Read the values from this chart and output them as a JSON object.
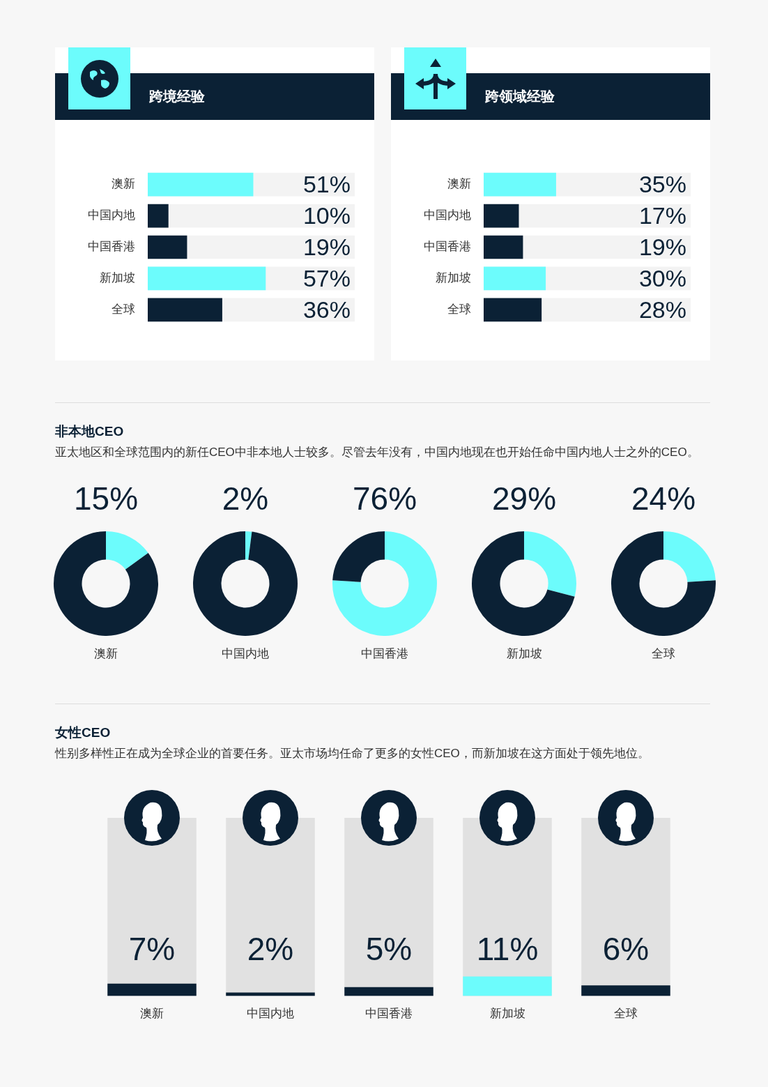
{
  "chart_data": [
    {
      "type": "bar",
      "orientation": "horizontal",
      "title": "跨境经验",
      "categories": [
        "澳新",
        "中国内地",
        "中国香港",
        "新加坡",
        "全球"
      ],
      "values": [
        51,
        10,
        19,
        57,
        36
      ],
      "colors": [
        "#6cfcfc",
        "#0b2135",
        "#0b2135",
        "#6cfcfc",
        "#0b2135"
      ],
      "value_labels": [
        "51%",
        "10%",
        "19%",
        "57%",
        "36%"
      ],
      "xlim": [
        0,
        100
      ],
      "tick_labels": "y"
    },
    {
      "type": "bar",
      "orientation": "horizontal",
      "title": "跨领域经验",
      "categories": [
        "澳新",
        "中国内地",
        "中国香港",
        "新加坡",
        "全球"
      ],
      "values": [
        35,
        17,
        19,
        30,
        28
      ],
      "colors": [
        "#6cfcfc",
        "#0b2135",
        "#0b2135",
        "#6cfcfc",
        "#0b2135"
      ],
      "value_labels": [
        "35%",
        "17%",
        "19%",
        "30%",
        "28%"
      ],
      "xlim": [
        0,
        100
      ],
      "tick_labels": "y"
    },
    {
      "type": "other",
      "title": "非本地CEO",
      "subtitle": "亚太地区和全球范围内的新任CEO中非本地人士较多。尽管去年没有，中国内地现在也开始任命中国内地人士之外的CEO。"
    },
    {
      "type": "donut",
      "title": "澳新",
      "categories": [
        null,
        null
      ],
      "values": [
        15,
        85
      ],
      "colors": [
        "#6cfcfc",
        "#0b2135"
      ],
      "value_labels": [
        "15%",
        null
      ]
    },
    {
      "type": "donut",
      "title": "中国内地",
      "categories": [
        null,
        null
      ],
      "values": [
        2,
        98
      ],
      "colors": [
        "#6cfcfc",
        "#0b2135"
      ],
      "value_labels": [
        "2%",
        null
      ]
    },
    {
      "type": "donut",
      "title": "中国香港",
      "categories": [
        null,
        null
      ],
      "values": [
        76,
        24
      ],
      "colors": [
        "#6cfcfc",
        "#0b2135"
      ],
      "value_labels": [
        "76%",
        null
      ]
    },
    {
      "type": "donut",
      "title": "新加坡",
      "categories": [
        null,
        null
      ],
      "values": [
        29,
        71
      ],
      "colors": [
        "#6cfcfc",
        "#0b2135"
      ],
      "value_labels": [
        "29%",
        null
      ]
    },
    {
      "type": "donut",
      "title": "全球",
      "categories": [
        null,
        null
      ],
      "values": [
        24,
        76
      ],
      "colors": [
        "#6cfcfc",
        "#0b2135"
      ],
      "value_labels": [
        "24%",
        null
      ]
    },
    {
      "type": "other",
      "title": "女性CEO",
      "subtitle": "性别多样性正在成为全球企业的首要任务。亚太市场均任命了更多的女性CEO，而新加坡在这方面处于领先地位。"
    },
    {
      "type": "bar",
      "categories": [
        "澳新",
        "中国内地",
        "中国香港",
        "新加坡",
        "全球"
      ],
      "values": [
        7,
        2,
        5,
        11,
        6
      ],
      "colors": [
        "#0b2135",
        "#0b2135",
        "#0b2135",
        "#6cfcfc",
        "#0b2135"
      ],
      "value_labels": [
        "7%",
        "2%",
        "5%",
        "11%",
        "6%"
      ],
      "ylim": [
        0,
        100
      ],
      "tick_labels": "x"
    }
  ]
}
